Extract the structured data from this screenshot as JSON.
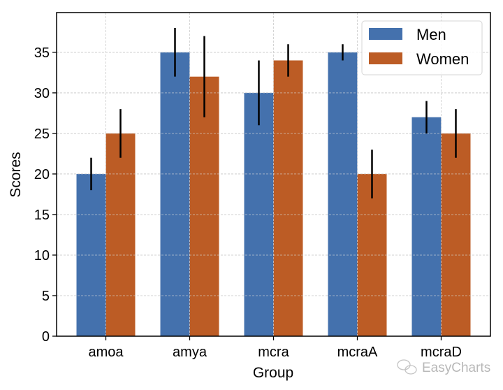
{
  "chart_data": {
    "type": "bar",
    "title": "",
    "xlabel": "Group",
    "ylabel": "Scores",
    "categories": [
      "amoa",
      "amya",
      "mcra",
      "mcraA",
      "mcraD"
    ],
    "series": [
      {
        "name": "Men",
        "color": "#4471ad",
        "values": [
          20,
          35,
          30,
          35,
          27
        ],
        "errors": [
          2,
          3,
          4,
          1,
          2
        ]
      },
      {
        "name": "Women",
        "color": "#bc5c25",
        "values": [
          25,
          32,
          34,
          20,
          25
        ],
        "errors": [
          3,
          5,
          2,
          3,
          3
        ]
      }
    ],
    "ylim": [
      0,
      39.9
    ],
    "yticks": [
      0,
      5,
      10,
      15,
      20,
      25,
      30,
      35
    ],
    "grid": true,
    "legend_position": "top-right",
    "watermark": "EasyCharts"
  }
}
